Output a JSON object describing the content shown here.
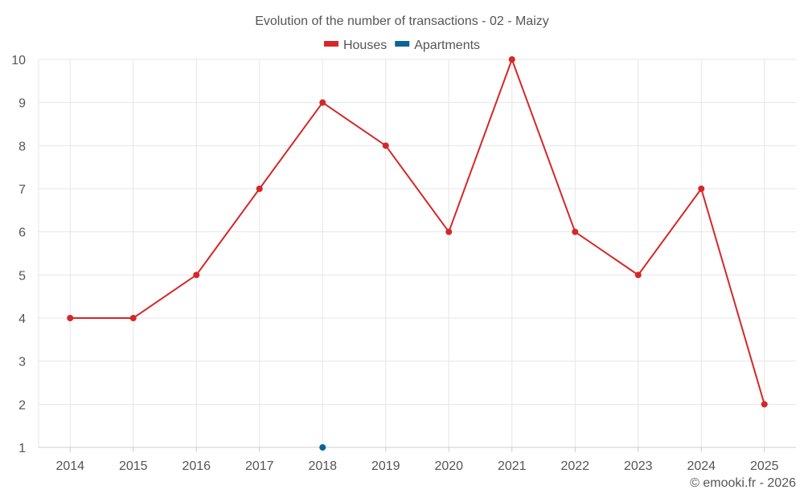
{
  "chart_data": {
    "type": "line",
    "title": "Evolution of the number of transactions - 02 - Maizy",
    "categories": [
      "2014",
      "2015",
      "2016",
      "2017",
      "2018",
      "2019",
      "2020",
      "2021",
      "2022",
      "2023",
      "2024",
      "2025"
    ],
    "series": [
      {
        "name": "Houses",
        "color": "#d62728",
        "values": [
          4,
          4,
          5,
          7,
          9,
          8,
          6,
          10,
          6,
          5,
          7,
          2
        ]
      },
      {
        "name": "Apartments",
        "color": "#0a6496",
        "values": [
          null,
          null,
          null,
          null,
          1,
          null,
          null,
          null,
          null,
          null,
          null,
          null
        ]
      }
    ],
    "yticks": [
      1,
      2,
      3,
      4,
      5,
      6,
      7,
      8,
      9,
      10
    ],
    "ylim": [
      1,
      10
    ],
    "xlabel": "",
    "ylabel": "",
    "grid": true,
    "legend": "top-center"
  },
  "credit": "© emooki.fr - 2026"
}
